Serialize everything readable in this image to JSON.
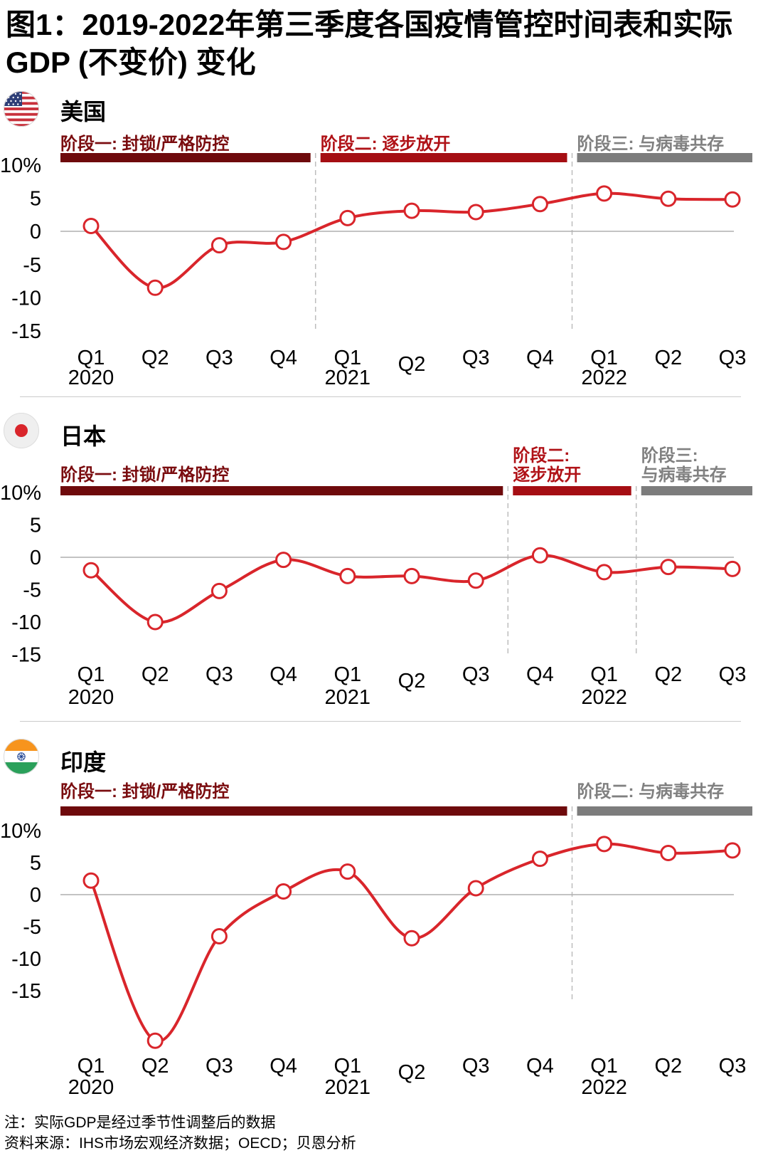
{
  "figure": {
    "title_lines": [
      "图1：2019-2022年第三季度各国疫情管控时间表和实际",
      "GDP (不变价) 变化"
    ],
    "notes": [
      "注：实际GDP是经过季节性调整后的数据",
      "资料来源：IHS市场宏观经济数据；OECD；贝恩分析"
    ]
  },
  "colors": {
    "phase1_bar": "#6E0A0C",
    "phase2_bar": "#A50E13",
    "phase3_bar": "#7C7C7C",
    "line_red": "#D9252B",
    "zero_gridline": "#AFAFAF",
    "dashed_boundary": "#BDBDBD"
  },
  "chart_data": [
    {
      "type": "line",
      "country": "美国",
      "flag": "us-flag",
      "unit": "%",
      "ylim": [
        -18,
        12
      ],
      "grid": "zero-line-only",
      "legend_position": "none",
      "x_labels": [
        "Q1",
        "Q2",
        "Q3",
        "Q4",
        "Q1",
        "Q2",
        "Q3",
        "Q4",
        "Q1",
        "Q2",
        "Q3"
      ],
      "years": [
        {
          "at": 0,
          "label": "2020"
        },
        {
          "at": 4,
          "label": "2021"
        },
        {
          "at": 8,
          "label": "2022"
        }
      ],
      "y_ticks": [
        {
          "v": 10,
          "label": "10%"
        },
        {
          "v": 5,
          "label": "5"
        },
        {
          "v": 0,
          "label": "0"
        },
        {
          "v": -5,
          "label": "-5"
        },
        {
          "v": -10,
          "label": "-10"
        },
        {
          "v": -15,
          "label": "-15"
        }
      ],
      "values": [
        0.8,
        -8.5,
        -2.1,
        -1.6,
        2.0,
        3.1,
        2.9,
        4.1,
        5.7,
        4.9,
        4.8
      ],
      "line_color": "#D9252B",
      "phases": [
        {
          "label_lines": [
            "阶段一: 封锁/严格防控"
          ],
          "from": 0,
          "to": 3,
          "bar_color": "#6E0A0C",
          "label_color": "#7A0C0F"
        },
        {
          "label_lines": [
            "阶段二: 逐步放开"
          ],
          "from": 4,
          "to": 7,
          "bar_color": "#A50E13",
          "label_color": "#B01217"
        },
        {
          "label_lines": [
            "阶段三: 与病毒共存"
          ],
          "from": 8,
          "to": 10,
          "bar_color": "#7C7C7C",
          "label_color": "#808080"
        }
      ]
    },
    {
      "type": "line",
      "country": "日本",
      "flag": "japan-flag",
      "unit": "%",
      "ylim": [
        -18,
        12
      ],
      "grid": "zero-line-only",
      "legend_position": "none",
      "x_labels": [
        "Q1",
        "Q2",
        "Q3",
        "Q4",
        "Q1",
        "Q2",
        "Q3",
        "Q4",
        "Q1",
        "Q2",
        "Q3"
      ],
      "years": [
        {
          "at": 0,
          "label": "2020"
        },
        {
          "at": 4,
          "label": "2021"
        },
        {
          "at": 8,
          "label": "2022"
        }
      ],
      "y_ticks": [
        {
          "v": 10,
          "label": "10%"
        },
        {
          "v": 5,
          "label": "5"
        },
        {
          "v": 0,
          "label": "0"
        },
        {
          "v": -5,
          "label": "-5"
        },
        {
          "v": -10,
          "label": "-10"
        },
        {
          "v": -15,
          "label": "-15"
        }
      ],
      "values": [
        -2.0,
        -10.0,
        -5.2,
        -0.4,
        -2.9,
        -2.9,
        -3.6,
        0.3,
        -2.3,
        -1.5,
        -1.8
      ],
      "line_color": "#D9252B",
      "phases": [
        {
          "label_lines": [
            "阶段一: 封锁/严格防控"
          ],
          "from": 0,
          "to": 6,
          "bar_color": "#6E0A0C",
          "label_color": "#7A0C0F"
        },
        {
          "label_lines": [
            "阶段二:",
            "逐步放开"
          ],
          "from": 7,
          "to": 8,
          "bar_color": "#A50E13",
          "label_color": "#B01217"
        },
        {
          "label_lines": [
            "阶段三:",
            "与病毒共存"
          ],
          "from": 9,
          "to": 10,
          "bar_color": "#7C7C7C",
          "label_color": "#808080"
        }
      ]
    },
    {
      "type": "line",
      "country": "印度",
      "flag": "india-flag",
      "unit": "%",
      "ylim": [
        -26,
        12
      ],
      "grid": "zero-line-only",
      "legend_position": "none",
      "x_labels": [
        "Q1",
        "Q2",
        "Q3",
        "Q4",
        "Q1",
        "Q2",
        "Q3",
        "Q4",
        "Q1",
        "Q2",
        "Q3"
      ],
      "years": [
        {
          "at": 0,
          "label": "2020"
        },
        {
          "at": 4,
          "label": "2021"
        },
        {
          "at": 8,
          "label": "2022"
        }
      ],
      "y_ticks": [
        {
          "v": 10,
          "label": "10%"
        },
        {
          "v": 5,
          "label": "5"
        },
        {
          "v": 0,
          "label": "0"
        },
        {
          "v": -5,
          "label": "-5"
        },
        {
          "v": -10,
          "label": "-10"
        },
        {
          "v": -15,
          "label": "-15"
        }
      ],
      "values": [
        2.2,
        -22.8,
        -6.5,
        0.5,
        3.6,
        -6.8,
        1.0,
        5.6,
        7.9,
        6.5,
        6.9
      ],
      "line_color": "#D9252B",
      "phases": [
        {
          "label_lines": [
            "阶段一: 封锁/严格防控"
          ],
          "from": 0,
          "to": 7,
          "bar_color": "#6E0A0C",
          "label_color": "#7A0C0F"
        },
        {
          "label_lines": [
            "阶段二: 与病毒共存"
          ],
          "from": 8,
          "to": 10,
          "bar_color": "#7C7C7C",
          "label_color": "#808080"
        }
      ]
    }
  ]
}
